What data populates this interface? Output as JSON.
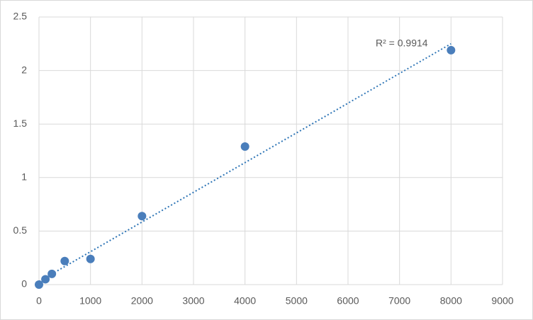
{
  "chart_data": {
    "type": "scatter",
    "series": [
      {
        "color": "#4a7ebb",
        "x": [
          0,
          125,
          250,
          500,
          1000,
          2000,
          4000,
          8000
        ],
        "values": [
          0,
          0.05,
          0.1,
          0.22,
          0.24,
          0.64,
          1.29,
          2.19
        ]
      }
    ],
    "trendline": {
      "color": "#2e75b6",
      "x": [
        0,
        8000
      ],
      "y": [
        0.03,
        2.25
      ]
    },
    "annotation": "R² = 0.9914",
    "xlim": [
      0,
      9000
    ],
    "xticks": [
      0,
      1000,
      2000,
      3000,
      4000,
      5000,
      6000,
      7000,
      8000,
      9000
    ],
    "ylim": [
      0,
      2.5
    ],
    "yticks": [
      0,
      0.5,
      1,
      1.5,
      2,
      2.5
    ],
    "grid": true
  }
}
